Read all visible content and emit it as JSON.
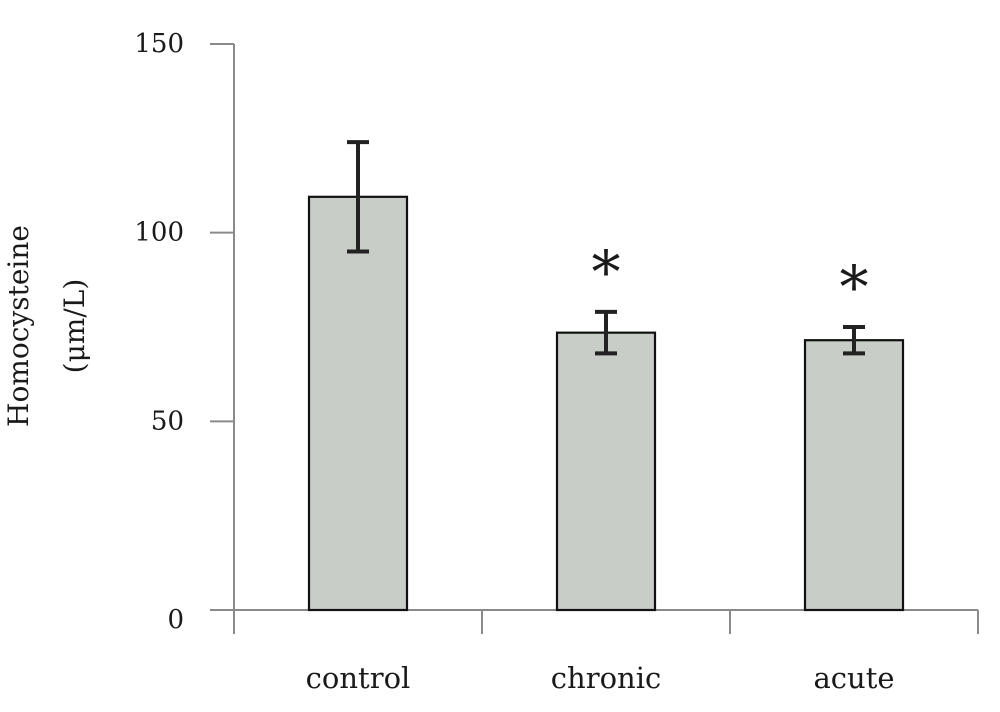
{
  "chart_data": {
    "type": "bar",
    "ylabel": [
      "Homocysteine",
      "(μm/L)"
    ],
    "categories": [
      "control",
      "chronic",
      "acute"
    ],
    "values": [
      109.5,
      73.5,
      71.5
    ],
    "errors": [
      14.5,
      5.5,
      3.5
    ],
    "markers": [
      "",
      "*",
      "*"
    ],
    "yticks": [
      0,
      50,
      100,
      150
    ],
    "ylim": [
      0,
      150
    ],
    "bar_color": "#c9cdc8",
    "grid": false
  }
}
